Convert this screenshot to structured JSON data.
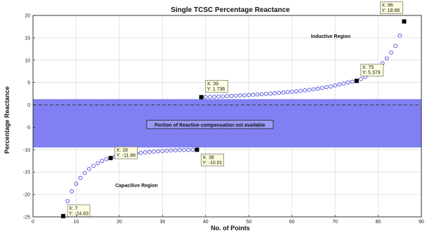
{
  "chart_data": {
    "type": "scatter",
    "title": "Single TCSC Percentage Reactance",
    "xlabel": "No. of Points",
    "ylabel": "Percentage Reactance",
    "xlim": [
      0,
      90
    ],
    "ylim": [
      -25,
      20
    ],
    "xticks": [
      0,
      10,
      20,
      30,
      40,
      50,
      60,
      70,
      80,
      90
    ],
    "yticks": [
      -25,
      -20,
      -15,
      -10,
      -5,
      0,
      5,
      10,
      15,
      20
    ],
    "grid": true,
    "marker_color": "#4a4adb",
    "band_color": "#8080f2",
    "band": {
      "y_from": -9.5,
      "y_to": 1.3,
      "label": "Portion of Reactive compensation not available"
    },
    "baseline_y": 0,
    "regions": [
      {
        "label": "Inductive Region",
        "x": 69,
        "y": 15
      },
      {
        "label": "Capacitive Region",
        "x": 24,
        "y": -18.3
      }
    ],
    "capacitive_series": {
      "x": [
        7,
        8,
        9,
        10,
        11,
        12,
        13,
        14,
        15,
        16,
        17,
        18,
        19,
        20,
        21,
        22,
        23,
        24,
        25,
        26,
        27,
        28,
        29,
        30,
        31,
        32,
        33,
        34,
        35,
        36,
        37,
        38
      ],
      "y": [
        -24.83,
        -21.5,
        -19.3,
        -17.6,
        -16.3,
        -15.2,
        -14.3,
        -13.6,
        -13.0,
        -12.5,
        -12.1,
        -11.86,
        -11.6,
        -11.4,
        -11.2,
        -11.05,
        -10.9,
        -10.8,
        -10.7,
        -10.6,
        -10.5,
        -10.42,
        -10.35,
        -10.28,
        -10.22,
        -10.17,
        -10.13,
        -10.09,
        -10.06,
        -10.04,
        -10.02,
        -10.01
      ]
    },
    "inductive_series": {
      "x": [
        39,
        40,
        41,
        42,
        43,
        44,
        45,
        46,
        47,
        48,
        49,
        50,
        51,
        52,
        53,
        54,
        55,
        56,
        57,
        58,
        59,
        60,
        61,
        62,
        63,
        64,
        65,
        66,
        67,
        68,
        69,
        70,
        71,
        72,
        73,
        74,
        75,
        76,
        77,
        78,
        79,
        80,
        81,
        82,
        83,
        84,
        85,
        86
      ],
      "y": [
        1.736,
        1.77,
        1.81,
        1.85,
        1.89,
        1.93,
        1.98,
        2.02,
        2.07,
        2.12,
        2.17,
        2.22,
        2.28,
        2.34,
        2.4,
        2.47,
        2.54,
        2.61,
        2.69,
        2.77,
        2.86,
        2.95,
        3.05,
        3.15,
        3.26,
        3.38,
        3.51,
        3.65,
        3.8,
        3.97,
        4.15,
        4.35,
        4.57,
        4.8,
        5.05,
        5.2,
        5.379,
        5.8,
        6.3,
        6.9,
        7.6,
        8.4,
        9.3,
        10.4,
        11.7,
        13.2,
        15.5,
        18.66
      ]
    },
    "datatips": [
      {
        "x": 7,
        "y": -24.83,
        "line1": "X: 7",
        "line2": "Y: -24.83"
      },
      {
        "x": 18,
        "y": -11.86,
        "line1": "X: 18",
        "line2": "Y: -11.86"
      },
      {
        "x": 38,
        "y": -10.01,
        "line1": "X: 38",
        "line2": "Y: -10.01"
      },
      {
        "x": 39,
        "y": 1.736,
        "line1": "X: 39",
        "line2": "Y: 1.736"
      },
      {
        "x": 75,
        "y": 5.379,
        "line1": "X: 75",
        "line2": "Y: 5.379"
      },
      {
        "x": 86,
        "y": 18.66,
        "line1": "X: 86",
        "line2": "Y: 18.66"
      }
    ]
  }
}
